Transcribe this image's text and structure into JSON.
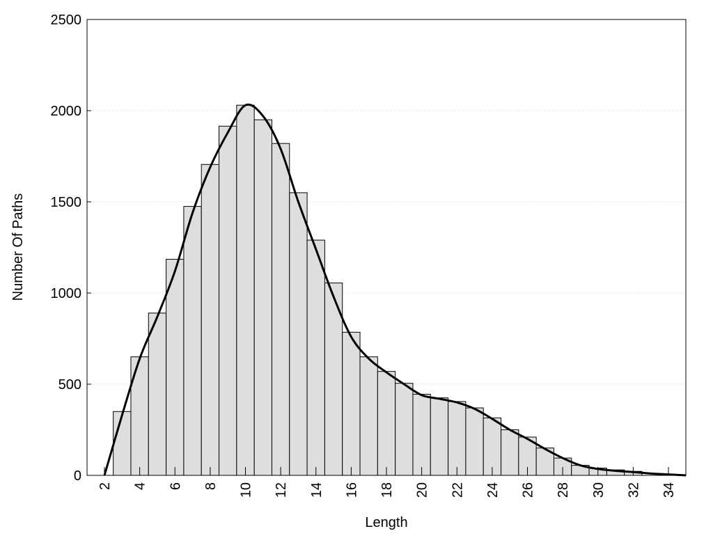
{
  "chart_data": {
    "type": "bar",
    "title": "",
    "xlabel": "Length",
    "ylabel": "Number Of Paths",
    "xlim": [
      1,
      35
    ],
    "ylim": [
      0,
      2500
    ],
    "yticks": [
      0,
      500,
      1000,
      1500,
      2000,
      2500
    ],
    "xticks": [
      2,
      4,
      6,
      8,
      10,
      12,
      14,
      16,
      18,
      20,
      22,
      24,
      26,
      28,
      30,
      32,
      34
    ],
    "grid": "horizontal dotted",
    "bar_color": "#dedede",
    "line_color": "#000000",
    "categories": [
      3,
      4,
      5,
      6,
      7,
      8,
      9,
      10,
      11,
      12,
      13,
      14,
      15,
      16,
      17,
      18,
      19,
      20,
      21,
      22,
      23,
      24,
      25,
      26,
      27,
      28,
      29,
      30,
      31,
      32
    ],
    "values": [
      350,
      650,
      890,
      1185,
      1475,
      1705,
      1915,
      2030,
      1950,
      1820,
      1550,
      1290,
      1055,
      785,
      650,
      570,
      505,
      445,
      425,
      405,
      370,
      315,
      250,
      210,
      150,
      95,
      55,
      40,
      30,
      22
    ],
    "curve": {
      "x": [
        2,
        3,
        4,
        5,
        6,
        7,
        8,
        9,
        10,
        11,
        12,
        13,
        14,
        15,
        16,
        17,
        18,
        19,
        20,
        21,
        22,
        23,
        24,
        25,
        26,
        27,
        28,
        29,
        30,
        31,
        32,
        33,
        34,
        35
      ],
      "y": [
        0,
        330,
        640,
        870,
        1120,
        1440,
        1690,
        1880,
        2030,
        1970,
        1790,
        1500,
        1240,
        980,
        760,
        640,
        565,
        500,
        440,
        420,
        400,
        365,
        310,
        250,
        200,
        145,
        95,
        55,
        35,
        25,
        18,
        10,
        5,
        0
      ]
    }
  }
}
